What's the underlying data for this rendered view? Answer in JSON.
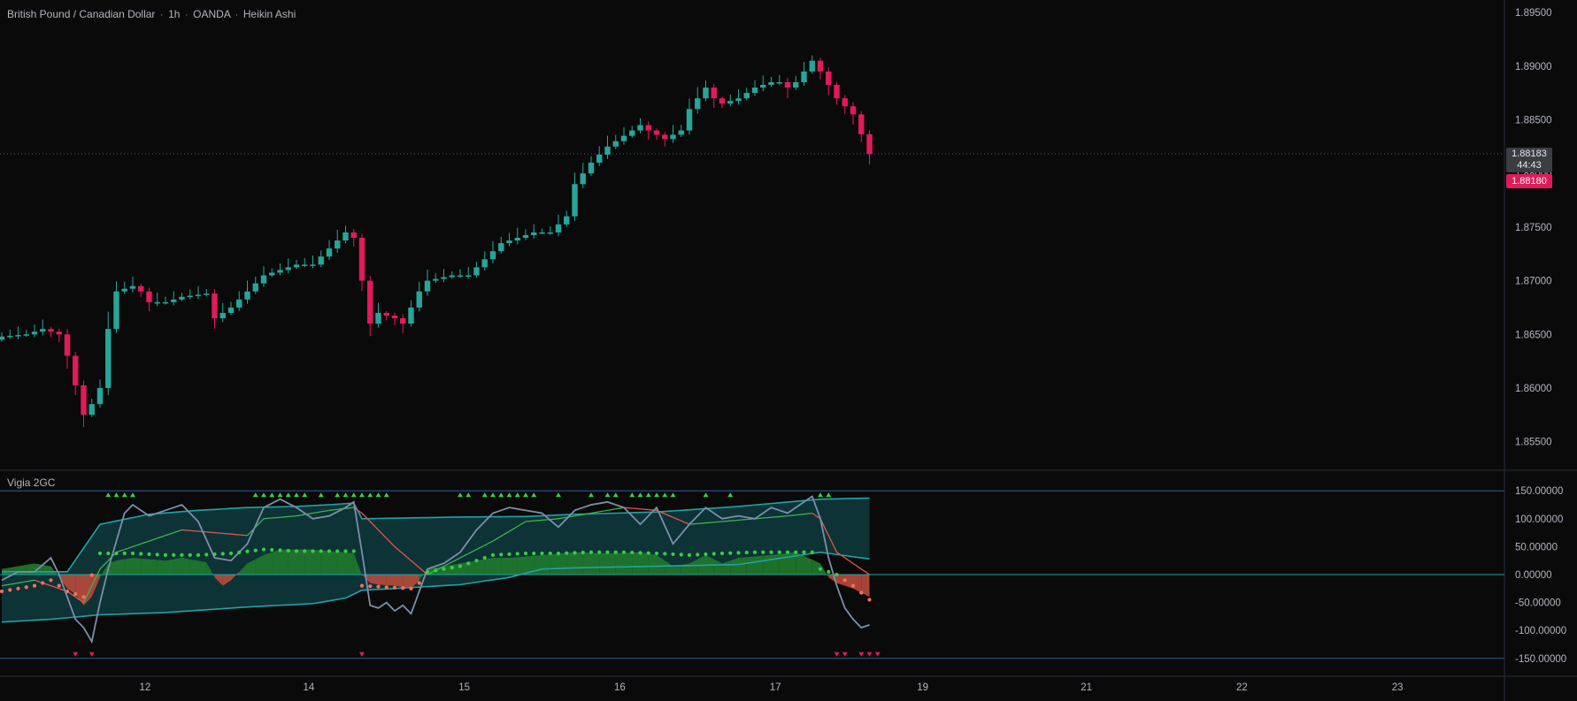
{
  "header": {
    "pair": "British Pound / Canadian Dollar",
    "timeframe": "1h",
    "broker": "OANDA",
    "chart_style": "Heikin Ashi",
    "separator": "·"
  },
  "indicator": {
    "title": "Vigia 2GC"
  },
  "price_badges": {
    "last": "1.88183",
    "countdown": "44:43",
    "bid": "1.88180"
  },
  "colors": {
    "background": "#0a0a0a",
    "bull": "#26a69a",
    "bear": "#e31a5a",
    "band_fill": "#0e3b3e",
    "band_line": "#1fa3a8",
    "green_fill": "#1f7a2e",
    "red_fill": "#b84a3c",
    "fast_line": "#7d8eaa",
    "ma_green": "#3db54a",
    "ma_red": "#e2574c",
    "dot_green": "#37d03f",
    "dot_red": "#ff6e5a",
    "reference_line": "#2b5c9e"
  },
  "chart_data": [
    {
      "type": "candlestick",
      "title": "British Pound / Canadian Dollar · 1h · OANDA · Heikin Ashi",
      "ylim": [
        1.8525,
        1.8955
      ],
      "y_ticks": [
        "1.89500",
        "1.89000",
        "1.88500",
        "1.88000",
        "1.87500",
        "1.87000",
        "1.86500",
        "1.86000",
        "1.85500"
      ],
      "y_tick_values": [
        1.895,
        1.89,
        1.885,
        1.88,
        1.875,
        1.87,
        1.865,
        1.86,
        1.855
      ],
      "x_ticks": [
        "12",
        "14",
        "15",
        "16",
        "17",
        "19",
        "21",
        "22",
        "23"
      ],
      "x_tick_index": [
        17.5,
        37.5,
        56.5,
        75.5,
        94.5,
        112.5,
        132.5,
        151.5,
        170.5
      ],
      "current_price": 1.88183,
      "waypoints": [
        [
          0,
          1.8648
        ],
        [
          3,
          1.865
        ],
        [
          5,
          1.8655
        ],
        [
          7,
          1.865
        ],
        [
          8,
          1.863
        ],
        [
          10,
          1.8575
        ],
        [
          11,
          1.8585
        ],
        [
          12,
          1.86
        ],
        [
          13,
          1.8655
        ],
        [
          14,
          1.869
        ],
        [
          16,
          1.8695
        ],
        [
          17,
          1.869
        ],
        [
          18,
          1.868
        ],
        [
          20,
          1.868
        ],
        [
          22,
          1.8685
        ],
        [
          25,
          1.8688
        ],
        [
          26,
          1.8665
        ],
        [
          28,
          1.8675
        ],
        [
          30,
          1.869
        ],
        [
          32,
          1.8705
        ],
        [
          34,
          1.871
        ],
        [
          36,
          1.8715
        ],
        [
          38,
          1.8715
        ],
        [
          40,
          1.873
        ],
        [
          42,
          1.8745
        ],
        [
          43,
          1.874
        ],
        [
          44,
          1.87
        ],
        [
          45,
          1.866
        ],
        [
          46,
          1.867
        ],
        [
          48,
          1.8665
        ],
        [
          49,
          1.866
        ],
        [
          51,
          1.869
        ],
        [
          52,
          1.87
        ],
        [
          55,
          1.8705
        ],
        [
          57,
          1.8705
        ],
        [
          59,
          1.872
        ],
        [
          61,
          1.8735
        ],
        [
          63,
          1.874
        ],
        [
          65,
          1.8745
        ],
        [
          67,
          1.8745
        ],
        [
          69,
          1.876
        ],
        [
          70,
          1.879
        ],
        [
          72,
          1.881
        ],
        [
          74,
          1.8825
        ],
        [
          76,
          1.8835
        ],
        [
          78,
          1.8845
        ],
        [
          79,
          1.884
        ],
        [
          81,
          1.8832
        ],
        [
          83,
          1.884
        ],
        [
          84,
          1.886
        ],
        [
          86,
          1.888
        ],
        [
          87,
          1.887
        ],
        [
          88,
          1.8865
        ],
        [
          90,
          1.887
        ],
        [
          92,
          1.888
        ],
        [
          94,
          1.8885
        ],
        [
          95,
          1.8885
        ],
        [
          96,
          1.888
        ],
        [
          97,
          1.8885
        ],
        [
          99,
          1.8905
        ],
        [
          100,
          1.8895
        ],
        [
          102,
          1.887
        ],
        [
          104,
          1.8855
        ],
        [
          106,
          1.8818
        ]
      ]
    },
    {
      "type": "line",
      "title": "Vigia 2GC",
      "ylim": [
        -163,
        163
      ],
      "y_ticks": [
        "150.00000",
        "100.00000",
        "50.00000",
        "0.00000",
        "-50.00000",
        "-100.00000",
        "-150.00000"
      ],
      "y_tick_values": [
        150,
        100,
        50,
        0,
        -50,
        -100,
        -150
      ],
      "reference_lines": [
        150,
        0,
        -150
      ],
      "series": {
        "band_upper": [
          [
            0,
            5
          ],
          [
            8,
            5
          ],
          [
            12,
            90
          ],
          [
            18,
            108
          ],
          [
            24,
            115
          ],
          [
            30,
            120
          ],
          [
            36,
            122
          ],
          [
            40,
            125
          ],
          [
            43,
            128
          ],
          [
            44,
            100
          ],
          [
            56,
            103
          ],
          [
            64,
            104
          ],
          [
            70,
            108
          ],
          [
            80,
            112
          ],
          [
            90,
            122
          ],
          [
            100,
            135
          ],
          [
            106,
            137
          ]
        ],
        "band_lower": [
          [
            0,
            -85
          ],
          [
            6,
            -80
          ],
          [
            12,
            -72
          ],
          [
            20,
            -68
          ],
          [
            30,
            -58
          ],
          [
            38,
            -52
          ],
          [
            42,
            -42
          ],
          [
            44,
            -28
          ],
          [
            48,
            -25
          ],
          [
            56,
            -18
          ],
          [
            62,
            -5
          ],
          [
            66,
            10
          ],
          [
            70,
            12
          ],
          [
            80,
            15
          ],
          [
            90,
            18
          ],
          [
            100,
            40
          ],
          [
            106,
            28
          ]
        ],
        "oscillator": [
          [
            0,
            10
          ],
          [
            2,
            15
          ],
          [
            4,
            20
          ],
          [
            6,
            15
          ],
          [
            7,
            -5
          ],
          [
            8,
            -25
          ],
          [
            9,
            -35
          ],
          [
            10,
            -55
          ],
          [
            11,
            -40
          ],
          [
            12,
            -5
          ],
          [
            13,
            20
          ],
          [
            14,
            25
          ],
          [
            16,
            30
          ],
          [
            20,
            25
          ],
          [
            22,
            30
          ],
          [
            25,
            22
          ],
          [
            26,
            -5
          ],
          [
            27,
            -20
          ],
          [
            28,
            -10
          ],
          [
            30,
            20
          ],
          [
            32,
            35
          ],
          [
            34,
            45
          ],
          [
            36,
            45
          ],
          [
            38,
            45
          ],
          [
            40,
            42
          ],
          [
            42,
            40
          ],
          [
            43,
            38
          ],
          [
            44,
            0
          ],
          [
            45,
            -15
          ],
          [
            46,
            -18
          ],
          [
            48,
            -20
          ],
          [
            50,
            -25
          ],
          [
            51,
            -10
          ],
          [
            52,
            10
          ],
          [
            56,
            20
          ],
          [
            60,
            30
          ],
          [
            62,
            30
          ],
          [
            66,
            35
          ],
          [
            70,
            40
          ],
          [
            74,
            38
          ],
          [
            78,
            40
          ],
          [
            80,
            35
          ],
          [
            82,
            15
          ],
          [
            84,
            20
          ],
          [
            86,
            35
          ],
          [
            88,
            20
          ],
          [
            90,
            30
          ],
          [
            94,
            35
          ],
          [
            97,
            40
          ],
          [
            100,
            20
          ],
          [
            101,
            -5
          ],
          [
            102,
            -15
          ],
          [
            104,
            -25
          ],
          [
            106,
            -40
          ]
        ],
        "fast": [
          [
            0,
            -10
          ],
          [
            2,
            5
          ],
          [
            4,
            5
          ],
          [
            6,
            30
          ],
          [
            7,
            0
          ],
          [
            8,
            -40
          ],
          [
            9,
            -80
          ],
          [
            10,
            -95
          ],
          [
            11,
            -120
          ],
          [
            12,
            -50
          ],
          [
            13,
            10
          ],
          [
            14,
            60
          ],
          [
            15,
            110
          ],
          [
            16,
            125
          ],
          [
            18,
            105
          ],
          [
            20,
            115
          ],
          [
            22,
            125
          ],
          [
            24,
            95
          ],
          [
            26,
            30
          ],
          [
            28,
            25
          ],
          [
            30,
            55
          ],
          [
            32,
            120
          ],
          [
            34,
            135
          ],
          [
            36,
            120
          ],
          [
            38,
            100
          ],
          [
            40,
            105
          ],
          [
            42,
            120
          ],
          [
            43,
            130
          ],
          [
            44,
            40
          ],
          [
            45,
            -55
          ],
          [
            46,
            -60
          ],
          [
            47,
            -50
          ],
          [
            48,
            -65
          ],
          [
            49,
            -55
          ],
          [
            50,
            -70
          ],
          [
            51,
            -30
          ],
          [
            52,
            10
          ],
          [
            54,
            20
          ],
          [
            56,
            40
          ],
          [
            58,
            80
          ],
          [
            60,
            110
          ],
          [
            62,
            120
          ],
          [
            64,
            115
          ],
          [
            66,
            110
          ],
          [
            68,
            85
          ],
          [
            70,
            115
          ],
          [
            72,
            125
          ],
          [
            74,
            130
          ],
          [
            76,
            120
          ],
          [
            78,
            90
          ],
          [
            80,
            120
          ],
          [
            82,
            55
          ],
          [
            84,
            90
          ],
          [
            86,
            120
          ],
          [
            88,
            100
          ],
          [
            90,
            105
          ],
          [
            92,
            100
          ],
          [
            94,
            120
          ],
          [
            96,
            110
          ],
          [
            98,
            130
          ],
          [
            99,
            140
          ],
          [
            100,
            100
          ],
          [
            101,
            30
          ],
          [
            102,
            -20
          ],
          [
            103,
            -60
          ],
          [
            104,
            -80
          ],
          [
            105,
            -95
          ],
          [
            106,
            -90
          ]
        ],
        "slow": [
          [
            0,
            -20
          ],
          [
            4,
            -10
          ],
          [
            8,
            -30
          ],
          [
            10,
            -50
          ],
          [
            12,
            10
          ],
          [
            14,
            40
          ],
          [
            18,
            60
          ],
          [
            22,
            80
          ],
          [
            26,
            75
          ],
          [
            30,
            70
          ],
          [
            32,
            100
          ],
          [
            36,
            105
          ],
          [
            40,
            115
          ],
          [
            43,
            120
          ],
          [
            44,
            110
          ],
          [
            48,
            50
          ],
          [
            52,
            0
          ],
          [
            56,
            30
          ],
          [
            60,
            60
          ],
          [
            64,
            95
          ],
          [
            68,
            100
          ],
          [
            72,
            110
          ],
          [
            76,
            120
          ],
          [
            80,
            115
          ],
          [
            84,
            90
          ],
          [
            88,
            95
          ],
          [
            92,
            100
          ],
          [
            96,
            105
          ],
          [
            99,
            110
          ],
          [
            100,
            100
          ],
          [
            102,
            40
          ],
          [
            106,
            0
          ]
        ],
        "dots": [
          [
            0,
            -30
          ],
          [
            4,
            -20
          ],
          [
            6,
            -10
          ],
          [
            8,
            -30
          ],
          [
            10,
            -40
          ],
          [
            12,
            38
          ],
          [
            16,
            38
          ],
          [
            20,
            35
          ],
          [
            24,
            35
          ],
          [
            28,
            38
          ],
          [
            32,
            45
          ],
          [
            36,
            42
          ],
          [
            40,
            42
          ],
          [
            43,
            42
          ],
          [
            44,
            -20
          ],
          [
            50,
            -25
          ],
          [
            51,
            -15
          ],
          [
            52,
            5
          ],
          [
            56,
            15
          ],
          [
            60,
            35
          ],
          [
            64,
            38
          ],
          [
            68,
            38
          ],
          [
            72,
            40
          ],
          [
            76,
            40
          ],
          [
            80,
            38
          ],
          [
            84,
            35
          ],
          [
            88,
            38
          ],
          [
            92,
            40
          ],
          [
            96,
            40
          ],
          [
            99,
            40
          ],
          [
            100,
            10
          ],
          [
            102,
            0
          ],
          [
            104,
            -20
          ],
          [
            106,
            -45
          ]
        ]
      },
      "up_arrow_index": [
        13,
        14,
        15,
        16,
        31,
        32,
        33,
        34,
        35,
        36,
        37,
        39,
        41,
        42,
        43,
        44,
        45,
        46,
        47,
        56,
        57,
        59,
        60,
        61,
        62,
        63,
        64,
        65,
        68,
        72,
        74,
        75,
        77,
        78,
        79,
        80,
        81,
        82,
        86,
        89,
        100,
        101
      ],
      "down_arrow_index": [
        9,
        11,
        44,
        102,
        103,
        105,
        106,
        107
      ]
    }
  ]
}
